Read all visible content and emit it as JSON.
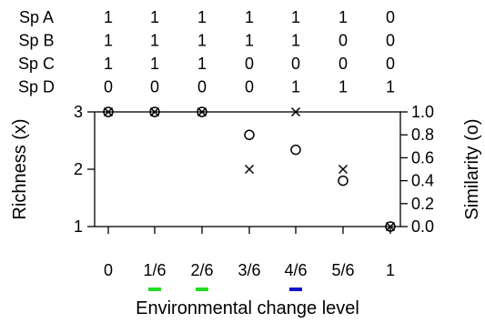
{
  "chart_data": {
    "type": "scatter",
    "species_table": {
      "rows": [
        {
          "label": "Sp A",
          "values": [
            "1",
            "1",
            "1",
            "1",
            "1",
            "1",
            "0"
          ]
        },
        {
          "label": "Sp B",
          "values": [
            "1",
            "1",
            "1",
            "1",
            "1",
            "0",
            "0"
          ]
        },
        {
          "label": "Sp C",
          "values": [
            "1",
            "1",
            "1",
            "0",
            "0",
            "0",
            "0"
          ]
        },
        {
          "label": "Sp D",
          "values": [
            "0",
            "0",
            "0",
            "0",
            "1",
            "1",
            "1"
          ]
        }
      ]
    },
    "categories": [
      "0",
      "1/6",
      "2/6",
      "3/6",
      "4/6",
      "5/6",
      "1"
    ],
    "xlabel": "Environmental change level",
    "ylabel_left": "Richness (x)",
    "ylabel_right": "Similarity (o)",
    "left_axis": {
      "ylim": [
        1,
        3
      ],
      "ticks": [
        "1",
        "2",
        "3"
      ]
    },
    "right_axis": {
      "ylim": [
        0,
        1
      ],
      "ticks": [
        "0.0",
        "0.2",
        "0.4",
        "0.6",
        "0.8",
        "1.0"
      ]
    },
    "series": [
      {
        "name": "Richness",
        "marker": "x",
        "axis": "left",
        "values": [
          3,
          3,
          3,
          2,
          3,
          2,
          1
        ]
      },
      {
        "name": "Similarity",
        "marker": "o",
        "axis": "right",
        "values": [
          1.0,
          1.0,
          1.0,
          0.8,
          0.67,
          0.4,
          0.0
        ]
      }
    ],
    "highlights": [
      {
        "category": "1/6",
        "color": "#22dd22"
      },
      {
        "category": "2/6",
        "color": "#22dd22"
      },
      {
        "category": "4/6",
        "color": "#1111cc"
      }
    ]
  }
}
